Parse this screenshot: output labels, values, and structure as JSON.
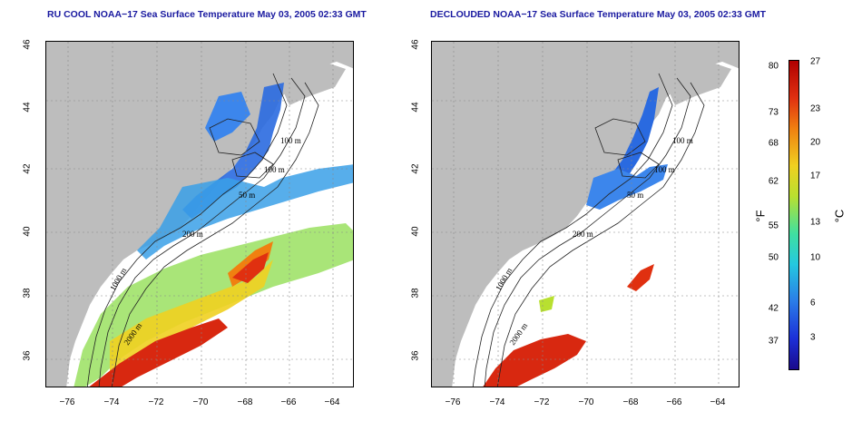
{
  "panels": [
    {
      "title": "RU COOL NOAA−17 Sea Surface Temperature May 03, 2005 02:33 GMT",
      "x_ticks": [
        "−76",
        "−74",
        "−72",
        "−70",
        "−68",
        "−66",
        "−64"
      ],
      "y_ticks": [
        "46",
        "44",
        "42",
        "40",
        "38",
        "36"
      ],
      "contour_labels": [
        "100 m",
        "100 m",
        "50 m",
        "200 m",
        "1000 m",
        "2000 m"
      ]
    },
    {
      "title": "DECLOUDED NOAA−17 Sea Surface Temperature May 03, 2005 02:33 GMT",
      "x_ticks": [
        "−76",
        "−74",
        "−72",
        "−70",
        "−68",
        "−66",
        "−64"
      ],
      "y_ticks": [
        "46",
        "44",
        "42",
        "40",
        "38",
        "36"
      ],
      "contour_labels": [
        "100 m",
        "100 m",
        "50 m",
        "200 m",
        "1000 m",
        "2000 m"
      ]
    }
  ],
  "colorbar": {
    "fahrenheit_ticks": [
      "80",
      "73",
      "68",
      "62",
      "55",
      "50",
      "42",
      "37"
    ],
    "celsius_ticks": [
      "27",
      "23",
      "20",
      "17",
      "13",
      "10",
      "6",
      "3"
    ],
    "unit_f": "°F",
    "unit_c": "°C",
    "colors": [
      "#1a0a8c",
      "#2a7ce8",
      "#24c8e0",
      "#b8e030",
      "#f0d020",
      "#f08010",
      "#b00000"
    ]
  }
}
